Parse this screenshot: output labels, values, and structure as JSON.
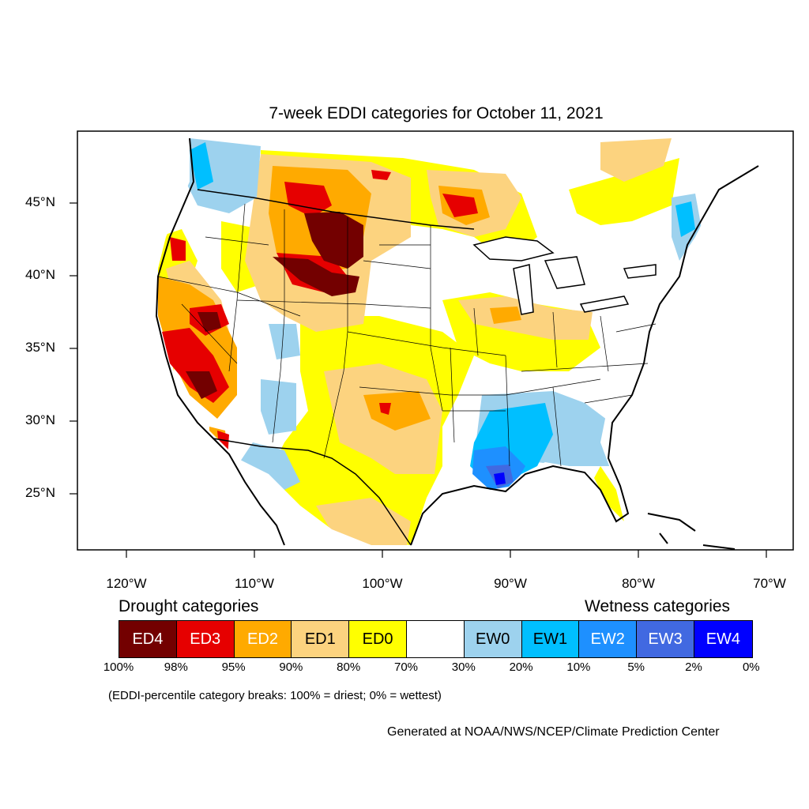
{
  "title": "7-week EDDI categories for October 11, 2021",
  "axes": {
    "lat_labels": [
      "45°N",
      "40°N",
      "35°N",
      "30°N",
      "25°N"
    ],
    "lon_labels": [
      "120°W",
      "110°W",
      "100°W",
      "90°W",
      "80°W",
      "70°W"
    ]
  },
  "legend": {
    "drought_heading": "Drought categories",
    "wetness_heading": "Wetness categories",
    "categories": [
      {
        "label": "ED4",
        "color": "#730000",
        "text_color": "#ffffff"
      },
      {
        "label": "ED3",
        "color": "#e60000",
        "text_color": "#ffffff"
      },
      {
        "label": "ED2",
        "color": "#ffaa00",
        "text_color": "#ffffff"
      },
      {
        "label": "ED1",
        "color": "#fcd37f",
        "text_color": "#000000"
      },
      {
        "label": "ED0",
        "color": "#ffff00",
        "text_color": "#000000"
      },
      {
        "label": "",
        "color": "#ffffff",
        "text_color": "#000000"
      },
      {
        "label": "EW0",
        "color": "#9dd2ee",
        "text_color": "#000000"
      },
      {
        "label": "EW1",
        "color": "#00bfff",
        "text_color": "#000000"
      },
      {
        "label": "EW2",
        "color": "#1e90ff",
        "text_color": "#ffffff"
      },
      {
        "label": "EW3",
        "color": "#4169e1",
        "text_color": "#ffffff"
      },
      {
        "label": "EW4",
        "color": "#0000ff",
        "text_color": "#ffffff"
      }
    ],
    "breaks": [
      "100%",
      "98%",
      "95%",
      "90%",
      "80%",
      "70%",
      "30%",
      "20%",
      "10%",
      "5%",
      "2%",
      "0%"
    ]
  },
  "note": "(EDDI-percentile category breaks: 100% = driest; 0% = wettest)",
  "credit": "Generated at NOAA/NWS/NCEP/Climate Prediction Center"
}
